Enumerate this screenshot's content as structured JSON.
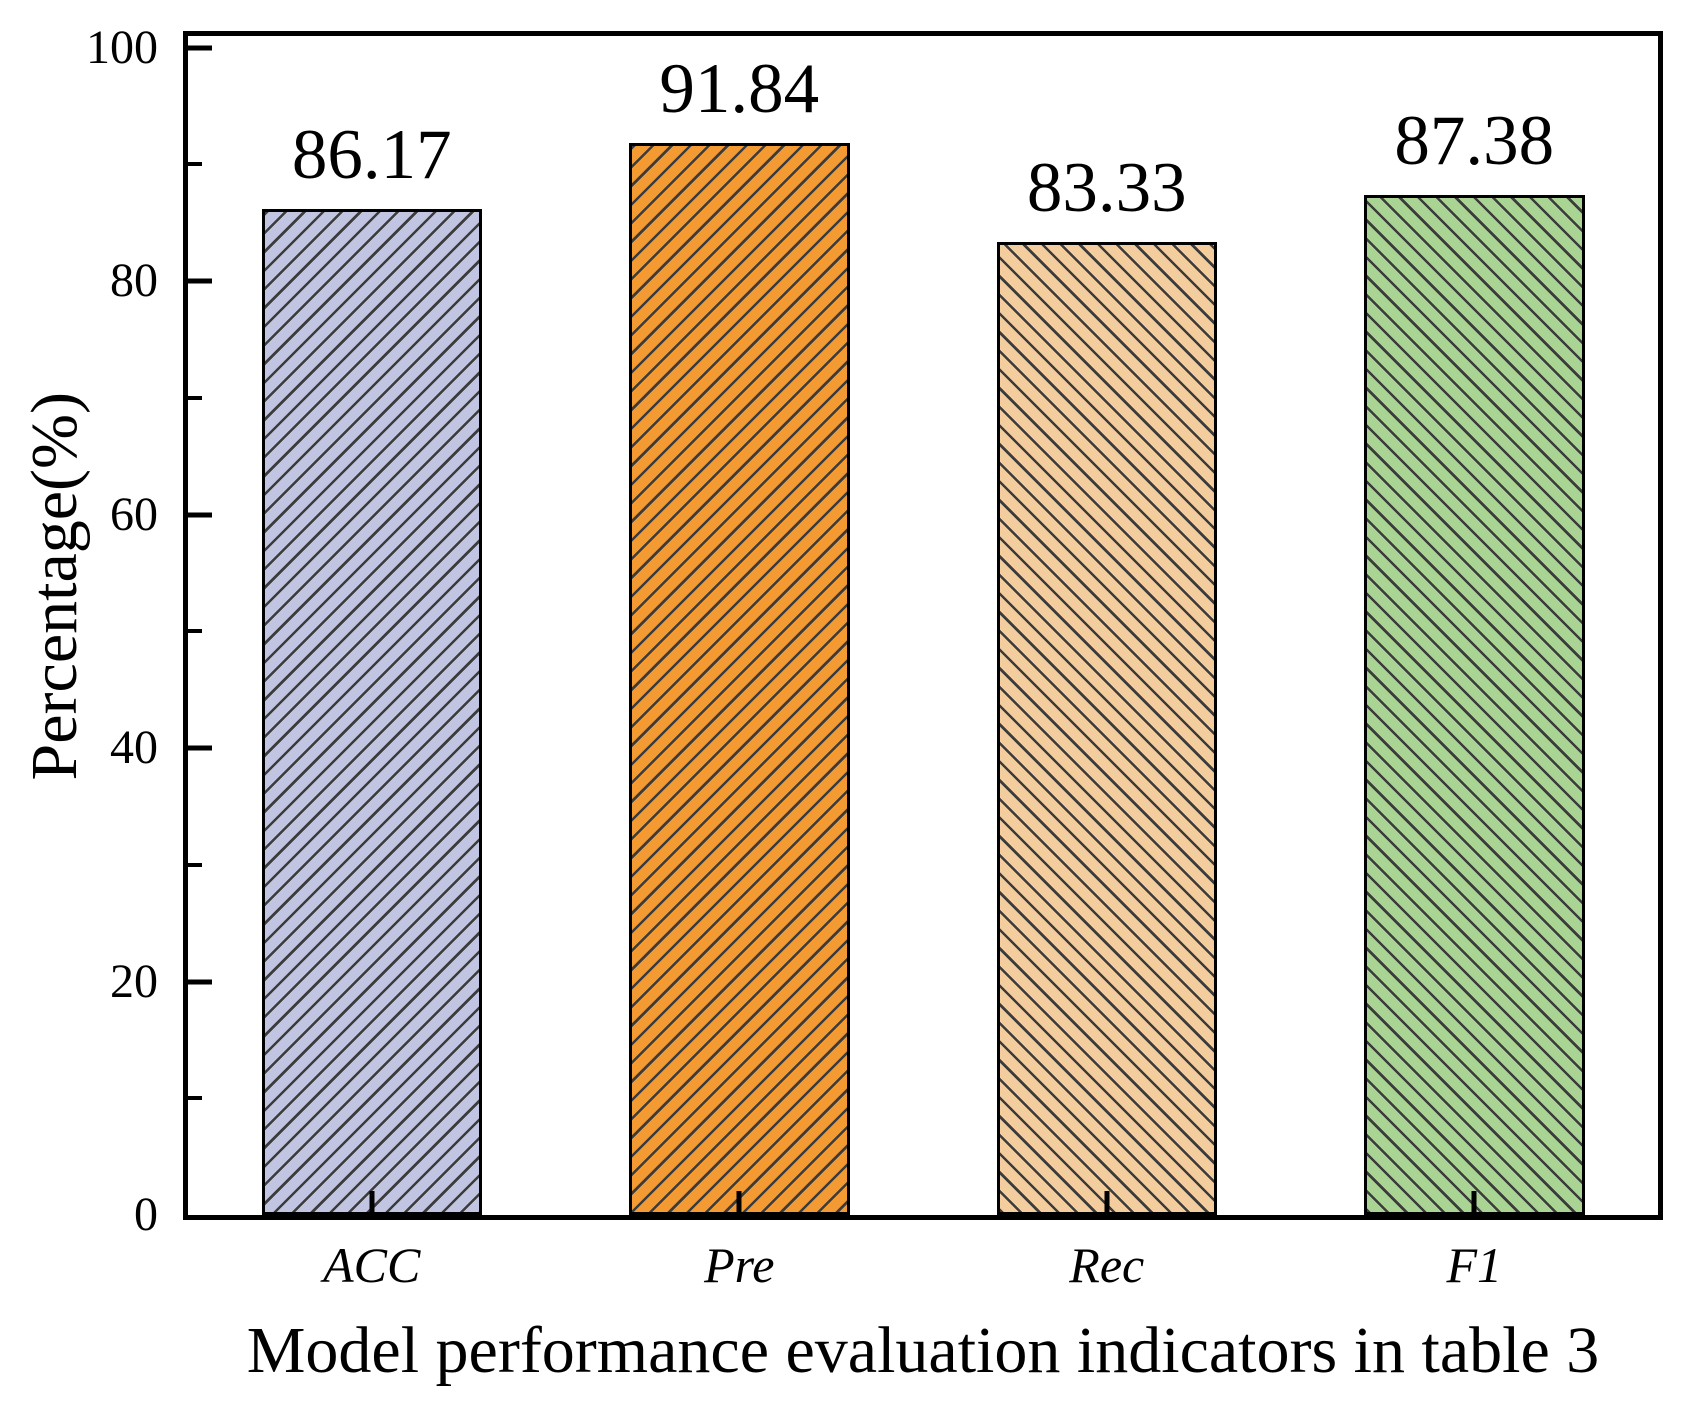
{
  "figure": {
    "background": "#ffffff"
  },
  "chart_data": {
    "type": "bar",
    "title": "",
    "xlabel": "Model performance evaluation indicators in table 3",
    "ylabel": "Percentage(%)",
    "categories": [
      "ACC",
      "Pre",
      "Rec",
      "F1"
    ],
    "values": [
      86.17,
      91.84,
      83.33,
      87.38
    ],
    "value_labels": [
      "86.17",
      "91.84",
      "83.33",
      "87.38"
    ],
    "bar_styles": [
      {
        "fill": "#c1c5e1",
        "hatch": "/"
      },
      {
        "fill": "#f49a33",
        "hatch": "/"
      },
      {
        "fill": "#f3cd9e",
        "hatch": "\\"
      },
      {
        "fill": "#a9d494",
        "hatch": "\\"
      }
    ],
    "hatch_color": "#3c3c3c",
    "bar_edge_color": "#000000",
    "axis_color": "#000000",
    "ylim": [
      0,
      101
    ],
    "yticks_major": [
      0,
      20,
      40,
      60,
      80,
      100
    ],
    "ytick_labels": [
      "0",
      "20",
      "40",
      "60",
      "80",
      "100"
    ],
    "yticks_minor": [
      10,
      30,
      50,
      70,
      90
    ],
    "bar_width_fraction": 0.15,
    "grid": false,
    "legend": null
  }
}
